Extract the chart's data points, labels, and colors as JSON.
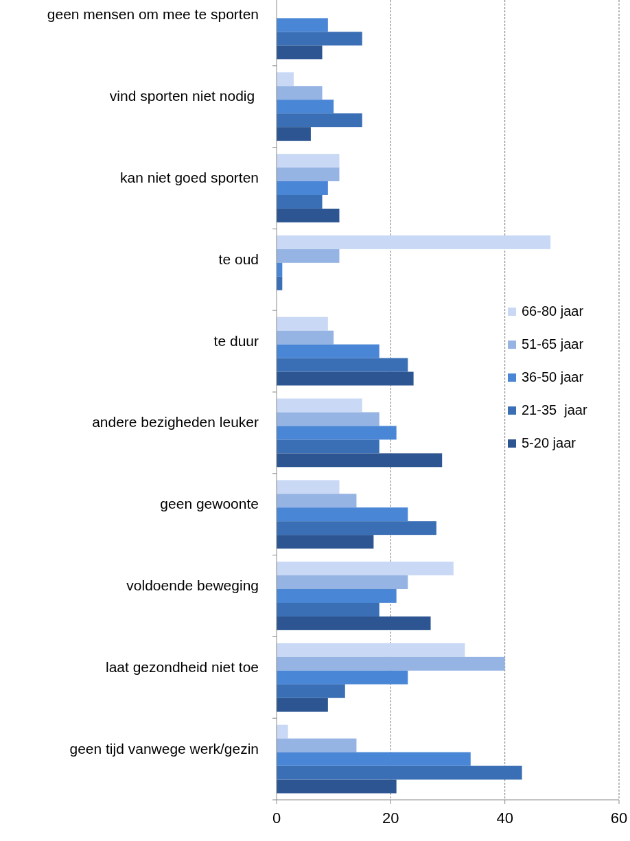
{
  "chart_data": {
    "type": "bar",
    "orientation": "horizontal",
    "categories": [
      "geen mensen om mee te sporten",
      "vind sporten niet nodig ",
      "kan niet goed sporten",
      "te oud",
      "te duur",
      "andere bezigheden leuker",
      "geen gewoonte",
      "voldoende beweging",
      "laat gezondheid niet toe",
      "geen tijd vanwege werk/gezin"
    ],
    "series": [
      {
        "name": "66-80 jaar",
        "color": "#c9d9f5",
        "values": [
          null,
          3,
          11,
          48,
          9,
          15,
          11,
          31,
          33,
          2
        ]
      },
      {
        "name": "51-65 jaar",
        "color": "#95b3e3",
        "values": [
          null,
          8,
          11,
          11,
          10,
          18,
          14,
          23,
          40,
          14
        ]
      },
      {
        "name": "36-50 jaar",
        "color": "#4a86d6",
        "values": [
          9,
          10,
          9,
          1,
          18,
          21,
          23,
          21,
          23,
          34
        ]
      },
      {
        "name": "21-35  jaar",
        "color": "#3a6fb5",
        "values": [
          15,
          15,
          8,
          1,
          23,
          18,
          28,
          18,
          12,
          43
        ]
      },
      {
        "name": "5-20 jaar",
        "color": "#2c5591",
        "values": [
          8,
          6,
          11,
          null,
          24,
          29,
          17,
          27,
          9,
          21
        ]
      }
    ],
    "xlim": [
      0,
      60
    ],
    "xticks": [
      0,
      20,
      40,
      60
    ],
    "grid": "x",
    "legend": "right"
  }
}
